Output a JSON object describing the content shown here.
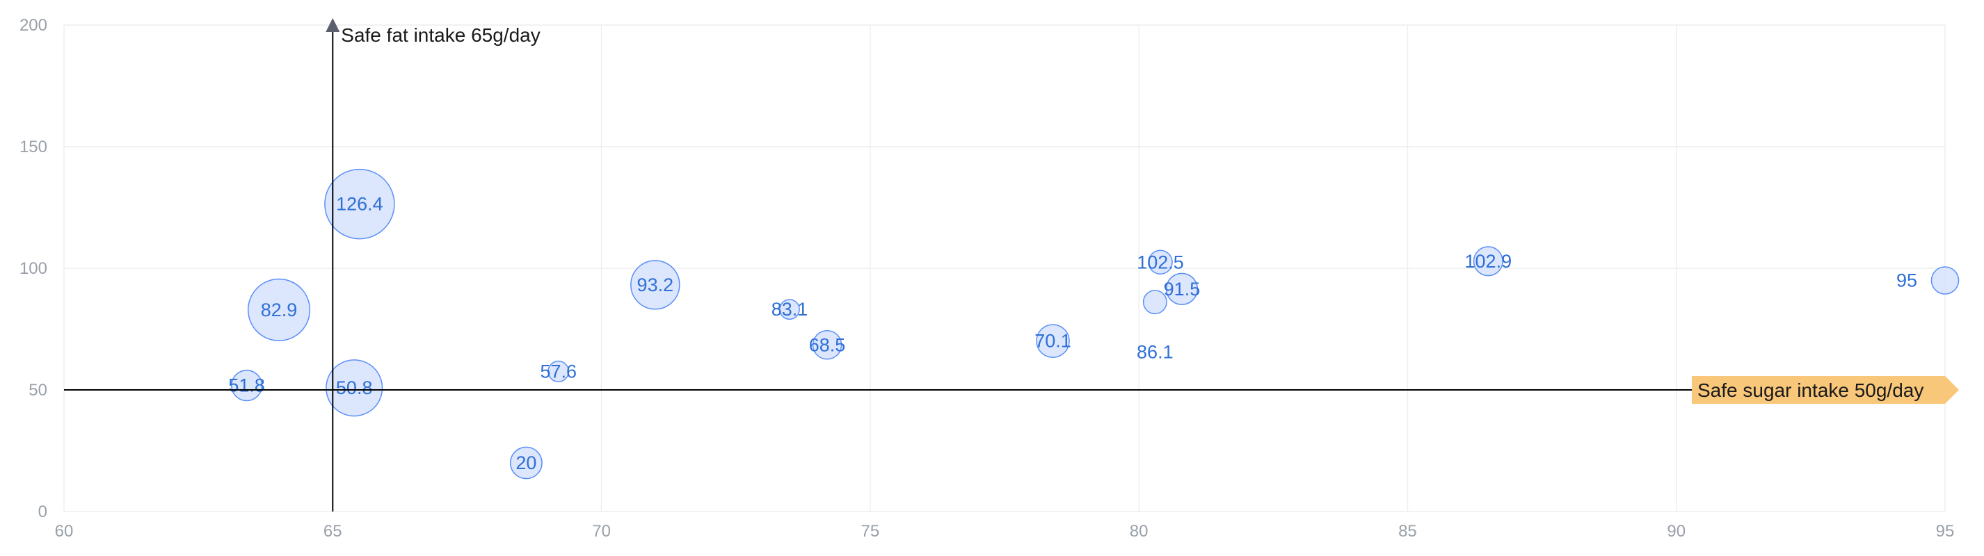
{
  "chart_data": {
    "type": "scatter",
    "subtype": "bubble",
    "title": "",
    "xlabel": "",
    "ylabel": "",
    "xlim": [
      60,
      95
    ],
    "ylim": [
      0,
      200
    ],
    "x_ticks": [
      "60",
      "65",
      "70",
      "75",
      "80",
      "85",
      "90",
      "95"
    ],
    "y_ticks": [
      "0",
      "50",
      "100",
      "150",
      "200"
    ],
    "grid": true,
    "legend": "none",
    "colors": {
      "bubble_fill": "#d6e2fb",
      "bubble_stroke": "#5b8ff9",
      "label": "#2f6fd6",
      "grid": "#eeeeee",
      "axis_text": "#9aa0a8",
      "reference_line": "#000000",
      "annotation_badge": "#f9c77a"
    },
    "points": [
      {
        "x": 95.0,
        "y": 95.0,
        "size": 13.8,
        "label": "95"
      },
      {
        "x": 86.5,
        "y": 102.9,
        "size": 14.7,
        "label": "102.9"
      },
      {
        "x": 80.8,
        "y": 91.5,
        "size": 15.8,
        "label": "91.5"
      },
      {
        "x": 80.4,
        "y": 102.5,
        "size": 12.0,
        "label": "102.5"
      },
      {
        "x": 80.3,
        "y": 86.1,
        "size": 11.8,
        "label": "86.1"
      },
      {
        "x": 78.4,
        "y": 70.1,
        "size": 16.6,
        "label": "70.1"
      },
      {
        "x": 74.2,
        "y": 68.5,
        "size": 14.5,
        "label": "68.5"
      },
      {
        "x": 73.5,
        "y": 83.1,
        "size": 10.0,
        "label": "83.1"
      },
      {
        "x": 71.0,
        "y": 93.2,
        "size": 24.7,
        "label": "93.2"
      },
      {
        "x": 69.2,
        "y": 57.6,
        "size": 10.4,
        "label": "57.6"
      },
      {
        "x": 68.6,
        "y": 20.0,
        "size": 16.0,
        "label": "20"
      },
      {
        "x": 65.5,
        "y": 126.4,
        "size": 35.3,
        "label": "126.4"
      },
      {
        "x": 65.4,
        "y": 50.8,
        "size": 28.5,
        "label": "50.8"
      },
      {
        "x": 64.0,
        "y": 82.9,
        "size": 31.3,
        "label": "82.9"
      },
      {
        "x": 63.4,
        "y": 51.8,
        "size": 15.4,
        "label": "51.8"
      }
    ],
    "annotations": [
      {
        "axis": "x",
        "value": 65,
        "text": "Safe fat intake 65g/day"
      },
      {
        "axis": "y",
        "value": 50,
        "text": "Safe sugar intake 50g/day"
      }
    ]
  }
}
